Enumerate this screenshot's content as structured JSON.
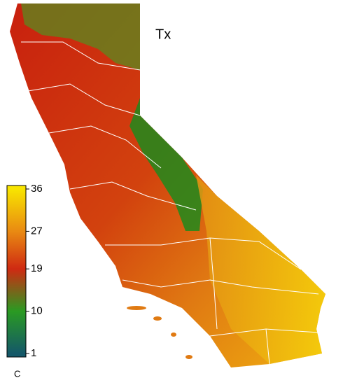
{
  "map": {
    "title": "Tx",
    "colorbar": {
      "ticks": [
        36,
        27,
        19,
        10,
        1
      ],
      "colors": [
        "#f8e400",
        "#e98a12",
        "#cf2a12",
        "#2a9a22",
        "#145868"
      ],
      "unit": "C"
    }
  }
}
